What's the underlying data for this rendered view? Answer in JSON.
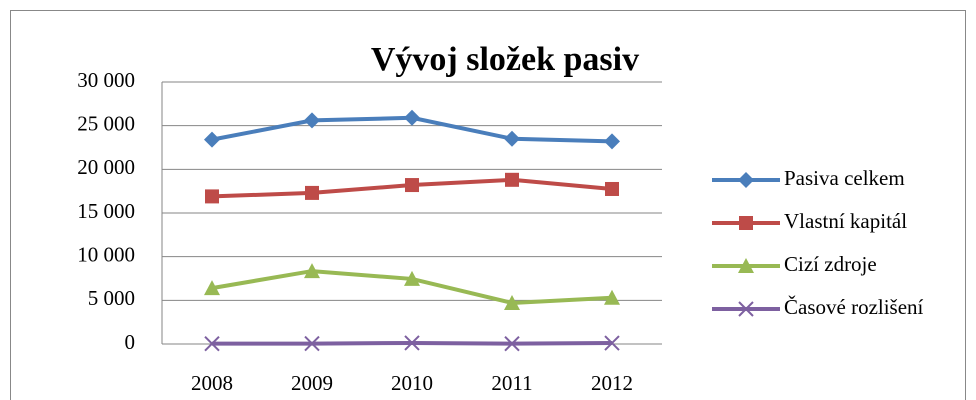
{
  "chart_data": {
    "type": "line",
    "title": "Vývoj složek pasiv",
    "categories": [
      "2008",
      "2009",
      "2010",
      "2011",
      "2012"
    ],
    "series": [
      {
        "name": "Pasiva celkem",
        "color": "#4a7ebb",
        "marker": "diamond",
        "values": [
          23400,
          25600,
          25900,
          23500,
          23200
        ]
      },
      {
        "name": "Vlastní kapitál",
        "color": "#be4b48",
        "marker": "square",
        "values": [
          16900,
          17300,
          18200,
          18800,
          17750
        ]
      },
      {
        "name": "Cizí zdroje",
        "color": "#98b954",
        "marker": "triangle",
        "values": [
          6400,
          8350,
          7450,
          4700,
          5300
        ]
      },
      {
        "name": "Časové rozlišení",
        "color": "#7d60a0",
        "marker": "x",
        "values": [
          40,
          50,
          120,
          40,
          110
        ]
      }
    ],
    "ylim": [
      0,
      30000
    ],
    "yticks": [
      {
        "value": 0,
        "label": "0"
      },
      {
        "value": 5000,
        "label": "5 000"
      },
      {
        "value": 10000,
        "label": "10 000"
      },
      {
        "value": 15000,
        "label": "15 000"
      },
      {
        "value": 20000,
        "label": "20 000"
      },
      {
        "value": 25000,
        "label": "25 000"
      },
      {
        "value": 30000,
        "label": "30 000"
      }
    ],
    "grid": true,
    "legend": "right"
  }
}
